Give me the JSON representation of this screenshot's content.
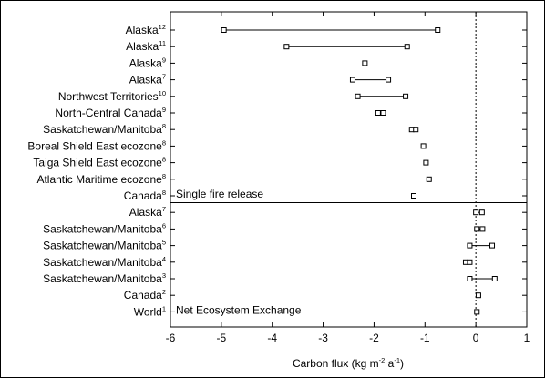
{
  "chart_data": {
    "type": "scatter",
    "subtype": "range-dot-plot",
    "xlabel": "Carbon flux (kg m-2 a-1)",
    "xlabel_parts": {
      "base": "Carbon flux (kg m",
      "exp1": "-2",
      "mid": " a",
      "exp2": "-1",
      "end": ")"
    },
    "xlim": [
      -6,
      1
    ],
    "xticks": [
      "-6",
      "-5",
      "-4",
      "-3",
      "-2",
      "-1",
      "0",
      "1"
    ],
    "reference_line_x": 0,
    "sections": [
      {
        "label": "Single fire release",
        "rows": [
          {
            "name": "Alaska",
            "ref": "12",
            "low": -4.95,
            "high": -0.75
          },
          {
            "name": "Alaska",
            "ref": "11",
            "low": -3.72,
            "high": -1.35
          },
          {
            "name": "Alaska",
            "ref": "9",
            "low": -2.18,
            "high": -2.18
          },
          {
            "name": "Alaska",
            "ref": "7",
            "low": -2.42,
            "high": -1.72
          },
          {
            "name": "Northwest Territories",
            "ref": "10",
            "low": -2.32,
            "high": -1.38
          },
          {
            "name": "North-Central Canada",
            "ref": "9",
            "low": -1.92,
            "high": -1.82
          },
          {
            "name": "Saskatchewan/Manitoba",
            "ref": "8",
            "low": -1.26,
            "high": -1.18
          },
          {
            "name": "Boreal Shield East ecozone",
            "ref": "8",
            "low": -1.03,
            "high": -1.03
          },
          {
            "name": "Taiga Shield East ecozone",
            "ref": "8",
            "low": -0.98,
            "high": -0.98
          },
          {
            "name": "Atlantic Maritime ecozone",
            "ref": "8",
            "low": -0.92,
            "high": -0.92
          },
          {
            "name": "Canada",
            "ref": "8",
            "low": -1.22,
            "high": -1.22
          }
        ]
      },
      {
        "label": "Net Ecosystem Exchange",
        "rows": [
          {
            "name": "Alaska",
            "ref": "7",
            "low": 0.0,
            "high": 0.12
          },
          {
            "name": "Saskatchewan/Manitoba",
            "ref": "6",
            "low": 0.02,
            "high": 0.13
          },
          {
            "name": "Saskatchewan/Manitoba",
            "ref": "5",
            "low": -0.12,
            "high": 0.32
          },
          {
            "name": "Saskatchewan/Manitoba",
            "ref": "4",
            "low": -0.2,
            "high": -0.12
          },
          {
            "name": "Saskatchewan/Manitoba",
            "ref": "3",
            "low": -0.12,
            "high": 0.37
          },
          {
            "name": "Canada",
            "ref": "2",
            "low": 0.05,
            "high": 0.05
          },
          {
            "name": "World",
            "ref": "1",
            "low": 0.02,
            "high": 0.02
          }
        ]
      }
    ]
  }
}
